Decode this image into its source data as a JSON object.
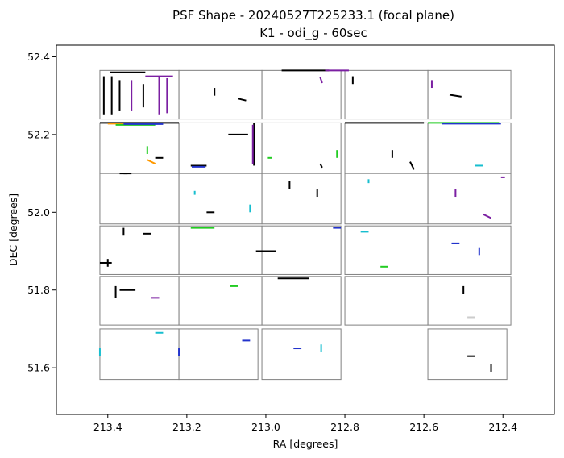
{
  "chart_data": {
    "type": "scatter",
    "title_line1": "PSF Shape - 20240527T225233.1 (focal plane)",
    "title_line2": "K1 - odi_g - 60sec",
    "xlabel": "RA [degrees]",
    "ylabel": "DEC [degrees]",
    "xlim": [
      213.53,
      212.27
    ],
    "ylim": [
      51.48,
      52.43
    ],
    "xticks": [
      213.4,
      213.2,
      213.0,
      212.8,
      212.6,
      212.4
    ],
    "xtick_labels": [
      "213.4",
      "213.2",
      "213.0",
      "212.8",
      "212.6",
      "212.4"
    ],
    "yticks": [
      51.6,
      51.8,
      52.0,
      52.2,
      52.4
    ],
    "ytick_labels": [
      "51.6",
      "51.8",
      "52.0",
      "52.2",
      "52.4"
    ],
    "grid": false,
    "legend": "none",
    "colors": {
      "chip_outline": "#808080",
      "black": "#000000",
      "purple": "#7b1fa2",
      "green": "#22cc22",
      "blue": "#2233cc",
      "cyan": "#17becf",
      "orange": "#ff9900",
      "lightgray": "#cccccc"
    },
    "chips": [
      {
        "ra": [
          213.42,
          213.22
        ],
        "dec": [
          52.24,
          52.365
        ]
      },
      {
        "ra": [
          213.22,
          213.01
        ],
        "dec": [
          52.24,
          52.365
        ]
      },
      {
        "ra": [
          213.01,
          212.81
        ],
        "dec": [
          52.24,
          52.365
        ]
      },
      {
        "ra": [
          212.8,
          212.59
        ],
        "dec": [
          52.24,
          52.365
        ]
      },
      {
        "ra": [
          212.59,
          212.38
        ],
        "dec": [
          52.24,
          52.365
        ]
      },
      {
        "ra": [
          213.42,
          213.22
        ],
        "dec": [
          52.1,
          52.23
        ]
      },
      {
        "ra": [
          213.22,
          213.01
        ],
        "dec": [
          52.1,
          52.23
        ]
      },
      {
        "ra": [
          213.01,
          212.81
        ],
        "dec": [
          52.1,
          52.23
        ]
      },
      {
        "ra": [
          212.8,
          212.59
        ],
        "dec": [
          52.1,
          52.23
        ]
      },
      {
        "ra": [
          212.59,
          212.38
        ],
        "dec": [
          52.1,
          52.23
        ]
      },
      {
        "ra": [
          213.42,
          213.22
        ],
        "dec": [
          51.97,
          52.1
        ]
      },
      {
        "ra": [
          213.22,
          213.01
        ],
        "dec": [
          51.97,
          52.1
        ]
      },
      {
        "ra": [
          213.01,
          212.81
        ],
        "dec": [
          51.97,
          52.1
        ]
      },
      {
        "ra": [
          212.8,
          212.59
        ],
        "dec": [
          51.97,
          52.1
        ]
      },
      {
        "ra": [
          212.59,
          212.38
        ],
        "dec": [
          51.97,
          52.1
        ]
      },
      {
        "ra": [
          213.42,
          213.22
        ],
        "dec": [
          51.84,
          51.965
        ]
      },
      {
        "ra": [
          213.22,
          213.01
        ],
        "dec": [
          51.84,
          51.965
        ]
      },
      {
        "ra": [
          213.01,
          212.81
        ],
        "dec": [
          51.84,
          51.965
        ]
      },
      {
        "ra": [
          212.8,
          212.59
        ],
        "dec": [
          51.84,
          51.965
        ]
      },
      {
        "ra": [
          212.59,
          212.38
        ],
        "dec": [
          51.84,
          51.965
        ]
      },
      {
        "ra": [
          213.42,
          213.22
        ],
        "dec": [
          51.71,
          51.835
        ]
      },
      {
        "ra": [
          213.22,
          213.01
        ],
        "dec": [
          51.71,
          51.835
        ]
      },
      {
        "ra": [
          213.01,
          212.81
        ],
        "dec": [
          51.71,
          51.835
        ]
      },
      {
        "ra": [
          212.8,
          212.59
        ],
        "dec": [
          51.71,
          51.835
        ]
      },
      {
        "ra": [
          212.59,
          212.38
        ],
        "dec": [
          51.71,
          51.835
        ]
      },
      {
        "ra": [
          213.42,
          213.22
        ],
        "dec": [
          51.57,
          51.7
        ]
      },
      {
        "ra": [
          213.22,
          213.02
        ],
        "dec": [
          51.57,
          51.7
        ]
      },
      {
        "ra": [
          213.01,
          212.81
        ],
        "dec": [
          51.57,
          51.7
        ]
      },
      {
        "ra": [
          212.59,
          212.39
        ],
        "dec": [
          51.57,
          51.7
        ]
      }
    ],
    "segments": [
      {
        "ra": 213.35,
        "dec": 52.36,
        "dra": 0.09,
        "ddec": 0.0,
        "c": "black"
      },
      {
        "ra": 213.27,
        "dec": 52.35,
        "dra": 0.07,
        "ddec": 0.0,
        "c": "purple"
      },
      {
        "ra": 213.41,
        "dec": 52.3,
        "dra": 0.0,
        "ddec": 0.1,
        "c": "black"
      },
      {
        "ra": 213.39,
        "dec": 52.3,
        "dra": 0.0,
        "ddec": 0.1,
        "c": "black"
      },
      {
        "ra": 213.37,
        "dec": 52.3,
        "dra": 0.0,
        "ddec": 0.08,
        "c": "black"
      },
      {
        "ra": 213.34,
        "dec": 52.3,
        "dra": 0.0,
        "ddec": 0.08,
        "c": "purple"
      },
      {
        "ra": 213.31,
        "dec": 52.3,
        "dra": 0.0,
        "ddec": 0.06,
        "c": "black"
      },
      {
        "ra": 213.27,
        "dec": 52.3,
        "dra": 0.0,
        "ddec": 0.1,
        "c": "purple"
      },
      {
        "ra": 213.25,
        "dec": 52.3,
        "dra": 0.0,
        "ddec": 0.09,
        "c": "purple"
      },
      {
        "ra": 213.06,
        "dec": 52.29,
        "dra": 0.02,
        "ddec": 0.005,
        "c": "black"
      },
      {
        "ra": 213.13,
        "dec": 52.31,
        "dra": 0.0,
        "ddec": 0.02,
        "c": "black"
      },
      {
        "ra": 212.9,
        "dec": 52.365,
        "dra": 0.12,
        "ddec": 0.0,
        "c": "black"
      },
      {
        "ra": 212.82,
        "dec": 52.365,
        "dra": 0.06,
        "ddec": 0.0,
        "c": "purple"
      },
      {
        "ra": 212.86,
        "dec": 52.34,
        "dra": 0.005,
        "ddec": 0.015,
        "c": "purple"
      },
      {
        "ra": 212.78,
        "dec": 52.34,
        "dra": 0.0,
        "ddec": 0.02,
        "c": "black"
      },
      {
        "ra": 212.58,
        "dec": 52.33,
        "dra": 0.0,
        "ddec": 0.02,
        "c": "purple"
      },
      {
        "ra": 212.52,
        "dec": 52.3,
        "dra": 0.03,
        "ddec": 0.005,
        "c": "black"
      },
      {
        "ra": 213.32,
        "dec": 52.23,
        "dra": 0.2,
        "ddec": 0.0,
        "c": "black"
      },
      {
        "ra": 213.34,
        "dec": 52.228,
        "dra": 0.12,
        "ddec": 0.0,
        "c": "orange"
      },
      {
        "ra": 213.33,
        "dec": 52.225,
        "dra": 0.1,
        "ddec": 0.0,
        "c": "green"
      },
      {
        "ra": 213.31,
        "dec": 52.227,
        "dra": 0.1,
        "ddec": 0.0,
        "c": "blue"
      },
      {
        "ra": 213.3,
        "dec": 52.16,
        "dra": 0.0,
        "ddec": 0.02,
        "c": "green"
      },
      {
        "ra": 213.27,
        "dec": 52.14,
        "dra": 0.02,
        "ddec": 0.0,
        "c": "black"
      },
      {
        "ra": 213.29,
        "dec": 52.13,
        "dra": 0.02,
        "ddec": 0.01,
        "c": "orange"
      },
      {
        "ra": 213.35,
        "dec": 52.1,
        "dra": 0.02,
        "ddec": 0.0,
        "c": "black"
      },
      {
        "ra": 213.17,
        "dec": 52.12,
        "dra": 0.04,
        "ddec": 0.0,
        "c": "black"
      },
      {
        "ra": 213.17,
        "dec": 52.117,
        "dra": 0.035,
        "ddec": 0.0,
        "c": "blue"
      },
      {
        "ra": 213.07,
        "dec": 52.2,
        "dra": 0.05,
        "ddec": 0.0,
        "c": "black"
      },
      {
        "ra": 213.03,
        "dec": 52.175,
        "dra": 0.0,
        "ddec": 0.11,
        "c": "black"
      },
      {
        "ra": 213.033,
        "dec": 52.175,
        "dra": 0.0,
        "ddec": 0.1,
        "c": "purple"
      },
      {
        "ra": 212.99,
        "dec": 52.14,
        "dra": 0.01,
        "ddec": 0.0,
        "c": "green"
      },
      {
        "ra": 212.82,
        "dec": 52.15,
        "dra": 0.0,
        "ddec": 0.02,
        "c": "green"
      },
      {
        "ra": 212.86,
        "dec": 52.12,
        "dra": 0.005,
        "ddec": 0.01,
        "c": "black"
      },
      {
        "ra": 212.7,
        "dec": 52.23,
        "dra": 0.2,
        "ddec": 0.0,
        "c": "black"
      },
      {
        "ra": 212.68,
        "dec": 52.15,
        "dra": 0.0,
        "ddec": 0.02,
        "c": "black"
      },
      {
        "ra": 212.63,
        "dec": 52.12,
        "dra": 0.01,
        "ddec": 0.02,
        "c": "black"
      },
      {
        "ra": 212.5,
        "dec": 52.23,
        "dra": 0.18,
        "ddec": 0.0,
        "c": "green"
      },
      {
        "ra": 212.48,
        "dec": 52.228,
        "dra": 0.15,
        "ddec": 0.0,
        "c": "blue"
      },
      {
        "ra": 212.46,
        "dec": 52.12,
        "dra": 0.02,
        "ddec": 0.0,
        "c": "cyan"
      },
      {
        "ra": 213.36,
        "dec": 52.1,
        "dra": 0.02,
        "ddec": 0.0,
        "c": "black"
      },
      {
        "ra": 213.18,
        "dec": 52.05,
        "dra": 0.0,
        "ddec": 0.01,
        "c": "cyan"
      },
      {
        "ra": 213.14,
        "dec": 52.0,
        "dra": 0.02,
        "ddec": 0.0,
        "c": "black"
      },
      {
        "ra": 213.04,
        "dec": 52.01,
        "dra": 0.0,
        "ddec": 0.02,
        "c": "cyan"
      },
      {
        "ra": 212.94,
        "dec": 52.07,
        "dra": 0.0,
        "ddec": 0.02,
        "c": "black"
      },
      {
        "ra": 212.87,
        "dec": 52.05,
        "dra": 0.0,
        "ddec": 0.02,
        "c": "black"
      },
      {
        "ra": 212.74,
        "dec": 52.08,
        "dra": 0.0,
        "ddec": 0.01,
        "c": "cyan"
      },
      {
        "ra": 212.52,
        "dec": 52.05,
        "dra": 0.0,
        "ddec": 0.02,
        "c": "purple"
      },
      {
        "ra": 212.4,
        "dec": 52.09,
        "dra": 0.01,
        "ddec": 0.0,
        "c": "purple"
      },
      {
        "ra": 212.44,
        "dec": 51.99,
        "dra": 0.02,
        "ddec": 0.01,
        "c": "purple"
      },
      {
        "ra": 213.36,
        "dec": 51.95,
        "dra": 0.0,
        "ddec": 0.02,
        "c": "black"
      },
      {
        "ra": 213.3,
        "dec": 51.945,
        "dra": 0.02,
        "ddec": 0.0,
        "c": "black"
      },
      {
        "ra": 213.4,
        "dec": 51.87,
        "dra": 0.0,
        "ddec": 0.02,
        "c": "black"
      },
      {
        "ra": 213.405,
        "dec": 51.87,
        "dra": 0.03,
        "ddec": 0.0,
        "c": "black"
      },
      {
        "ra": 213.16,
        "dec": 51.96,
        "dra": 0.06,
        "ddec": 0.0,
        "c": "green"
      },
      {
        "ra": 213.0,
        "dec": 51.9,
        "dra": 0.05,
        "ddec": 0.0,
        "c": "black"
      },
      {
        "ra": 212.82,
        "dec": 51.96,
        "dra": 0.02,
        "ddec": 0.0,
        "c": "blue"
      },
      {
        "ra": 212.75,
        "dec": 51.95,
        "dra": 0.02,
        "ddec": 0.0,
        "c": "cyan"
      },
      {
        "ra": 212.7,
        "dec": 51.86,
        "dra": 0.02,
        "ddec": 0.0,
        "c": "green"
      },
      {
        "ra": 212.46,
        "dec": 51.9,
        "dra": 0.0,
        "ddec": 0.02,
        "c": "blue"
      },
      {
        "ra": 212.52,
        "dec": 51.92,
        "dra": 0.02,
        "ddec": 0.0,
        "c": "blue"
      },
      {
        "ra": 213.35,
        "dec": 51.8,
        "dra": 0.04,
        "ddec": 0.0,
        "c": "black"
      },
      {
        "ra": 213.38,
        "dec": 51.795,
        "dra": 0.0,
        "ddec": 0.03,
        "c": "black"
      },
      {
        "ra": 213.28,
        "dec": 51.78,
        "dra": 0.02,
        "ddec": 0.0,
        "c": "purple"
      },
      {
        "ra": 213.08,
        "dec": 51.81,
        "dra": 0.02,
        "ddec": 0.0,
        "c": "green"
      },
      {
        "ra": 212.93,
        "dec": 51.83,
        "dra": 0.08,
        "ddec": 0.0,
        "c": "black"
      },
      {
        "ra": 212.5,
        "dec": 51.8,
        "dra": 0.0,
        "ddec": 0.02,
        "c": "black"
      },
      {
        "ra": 212.48,
        "dec": 51.73,
        "dra": 0.02,
        "ddec": 0.0,
        "c": "lightgray"
      },
      {
        "ra": 213.27,
        "dec": 51.69,
        "dra": 0.02,
        "ddec": 0.0,
        "c": "cyan"
      },
      {
        "ra": 213.22,
        "dec": 51.64,
        "dra": 0.0,
        "ddec": 0.02,
        "c": "blue"
      },
      {
        "ra": 213.05,
        "dec": 51.67,
        "dra": 0.02,
        "ddec": 0.0,
        "c": "blue"
      },
      {
        "ra": 212.86,
        "dec": 51.65,
        "dra": 0.0,
        "ddec": 0.02,
        "c": "cyan"
      },
      {
        "ra": 212.92,
        "dec": 51.65,
        "dra": 0.02,
        "ddec": 0.0,
        "c": "blue"
      },
      {
        "ra": 212.43,
        "dec": 51.6,
        "dra": 0.0,
        "ddec": 0.02,
        "c": "black"
      },
      {
        "ra": 212.48,
        "dec": 51.63,
        "dra": 0.02,
        "ddec": 0.0,
        "c": "black"
      },
      {
        "ra": 213.42,
        "dec": 51.64,
        "dra": 0.0,
        "ddec": 0.02,
        "c": "cyan"
      }
    ]
  }
}
